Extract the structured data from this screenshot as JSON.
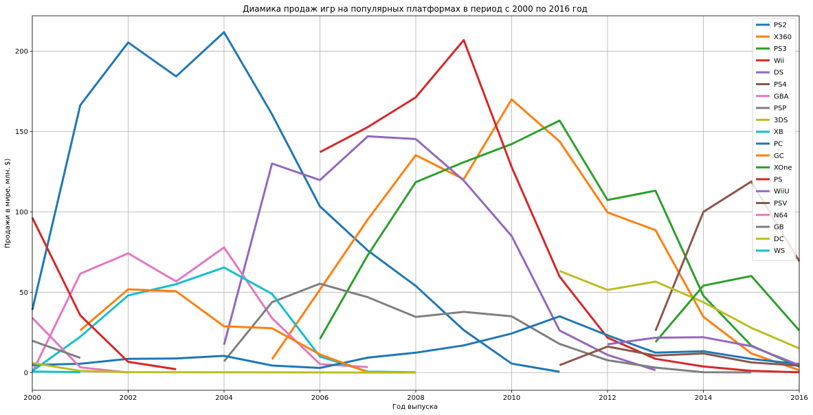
{
  "chart_data": {
    "type": "line",
    "title": "Диамика продаж игр на популярных платформах в период с 2000 по 2016 год",
    "xlabel": "Год выпуска",
    "ylabel": "Продажи в мире, млн. $)",
    "xlim": [
      2000,
      2016
    ],
    "ylim": [
      -11,
      222
    ],
    "xticks": [
      2000,
      2002,
      2004,
      2006,
      2008,
      2010,
      2012,
      2014,
      2016
    ],
    "yticks": [
      0,
      50,
      100,
      150,
      200
    ],
    "grid": true,
    "legend_position": "top-right",
    "series": [
      {
        "name": "PS2",
        "color": "#1f77b4",
        "x": [
          2000,
          2001,
          2002,
          2003,
          2004,
          2005,
          2006,
          2007,
          2008,
          2009,
          2010,
          2011
        ],
        "y": [
          39,
          166.4,
          205.4,
          184.3,
          211.8,
          160.7,
          103.4,
          75.9,
          53.9,
          26.4,
          5.6,
          0.5
        ]
      },
      {
        "name": "X360",
        "color": "#ff7f0e",
        "x": [
          2005,
          2006,
          2007,
          2008,
          2009,
          2010,
          2011,
          2012,
          2013,
          2014,
          2015,
          2016
        ],
        "y": [
          8.3,
          51.6,
          95.4,
          135.3,
          120.3,
          170,
          143.8,
          99.7,
          88.6,
          34.7,
          11.9,
          1.5
        ]
      },
      {
        "name": "PS3",
        "color": "#2ca02c",
        "x": [
          2006,
          2007,
          2008,
          2009,
          2010,
          2011,
          2012,
          2013,
          2014,
          2015,
          2016
        ],
        "y": [
          20.9,
          73.2,
          118.5,
          130.9,
          142.2,
          156.8,
          107.4,
          113.2,
          47.8,
          16.8,
          3.6
        ]
      },
      {
        "name": "Wii",
        "color": "#d62728",
        "x": [
          2006,
          2007,
          2008,
          2009,
          2010,
          2011,
          2012,
          2013,
          2014,
          2015,
          2016
        ],
        "y": [
          137.2,
          152.8,
          171.3,
          206.9,
          127.9,
          59.7,
          21.7,
          8.6,
          3.8,
          1.1,
          0.2
        ]
      },
      {
        "name": "DS",
        "color": "#9467bd",
        "x": [
          2004,
          2005,
          2006,
          2007,
          2008,
          2009,
          2010,
          2011,
          2012,
          2013
        ],
        "y": [
          17.3,
          130.1,
          119.8,
          147,
          145.3,
          119.5,
          85,
          26.2,
          11,
          1.5
        ]
      },
      {
        "name": "PS4",
        "color": "#8c564b",
        "x": [
          2013,
          2014,
          2015,
          2016
        ],
        "y": [
          25.99,
          100,
          118.9,
          69.3
        ]
      },
      {
        "name": "GBA",
        "color": "#e377c2",
        "x": [
          2000,
          2001,
          2002,
          2003,
          2004,
          2005,
          2006,
          2007
        ],
        "y": [
          0.07,
          61.5,
          74.2,
          56.7,
          77.9,
          33.9,
          5.3,
          3.4
        ]
      },
      {
        "name": "PSP",
        "color": "#7f7f7f",
        "x": [
          2004,
          2005,
          2006,
          2007,
          2008,
          2009,
          2010,
          2011,
          2012,
          2013,
          2014,
          2015
        ],
        "y": [
          7,
          43.8,
          55.3,
          46.9,
          34.6,
          37.8,
          35,
          17.8,
          7.7,
          3.1,
          0.2,
          0.1
        ]
      },
      {
        "name": "3DS",
        "color": "#bcbd22",
        "x": [
          2011,
          2012,
          2013,
          2014,
          2015,
          2016
        ],
        "y": [
          63.2,
          51.4,
          56.6,
          43.8,
          27.8,
          15.1
        ]
      },
      {
        "name": "XB",
        "color": "#17becf",
        "x": [
          2000,
          2001,
          2002,
          2003,
          2004,
          2005,
          2006,
          2007,
          2008
        ],
        "y": [
          0.99,
          22.3,
          48,
          55,
          65.4,
          49,
          10,
          0.6,
          0.2
        ]
      },
      {
        "name": "PC",
        "color": "#1f77b4",
        "x": [
          2000,
          2001,
          2002,
          2003,
          2004,
          2005,
          2006,
          2007,
          2008,
          2009,
          2010,
          2011,
          2012,
          2013,
          2014,
          2015,
          2016
        ],
        "y": [
          4.7,
          5.5,
          8.6,
          8.8,
          10.4,
          4.4,
          2.9,
          9.3,
          12.4,
          16.9,
          24.3,
          35,
          23.2,
          12.4,
          13.3,
          8.5,
          5.3
        ]
      },
      {
        "name": "GC",
        "color": "#ff7f0e",
        "x": [
          2001,
          2002,
          2003,
          2004,
          2005,
          2006,
          2007
        ],
        "y": [
          26.3,
          51.8,
          50.6,
          28.8,
          27.6,
          11.3,
          0.3
        ]
      },
      {
        "name": "XOne",
        "color": "#2ca02c",
        "x": [
          2013,
          2014,
          2015,
          2016
        ],
        "y": [
          18.96,
          54.1,
          60.1,
          26.2
        ]
      },
      {
        "name": "PS",
        "color": "#d62728",
        "x": [
          2000,
          2001,
          2002,
          2003
        ],
        "y": [
          96.4,
          35.6,
          6.7,
          2.1
        ]
      },
      {
        "name": "WiiU",
        "color": "#9467bd",
        "x": [
          2012,
          2013,
          2014,
          2015,
          2016
        ],
        "y": [
          17.6,
          21.7,
          22,
          16.4,
          4.6
        ]
      },
      {
        "name": "PSV",
        "color": "#8c564b",
        "x": [
          2011,
          2012,
          2013,
          2014,
          2015,
          2016
        ],
        "y": [
          4.6,
          16.2,
          10.6,
          11.9,
          6.3,
          4.3
        ]
      },
      {
        "name": "N64",
        "color": "#e377c2",
        "x": [
          2000,
          2001,
          2002
        ],
        "y": [
          34,
          3.3,
          0.08
        ]
      },
      {
        "name": "GB",
        "color": "#7f7f7f",
        "x": [
          2000,
          2001
        ],
        "y": [
          19.8,
          9.2
        ]
      },
      {
        "name": "DC",
        "color": "#bcbd22",
        "x": [
          2000,
          2001,
          2002,
          2007,
          2008
        ],
        "y": [
          5.99,
          1.07,
          0.29,
          0.02,
          0.04
        ]
      },
      {
        "name": "WS",
        "color": "#17becf",
        "x": [
          2000,
          2001
        ],
        "y": [
          0.68,
          0.28
        ]
      }
    ]
  }
}
